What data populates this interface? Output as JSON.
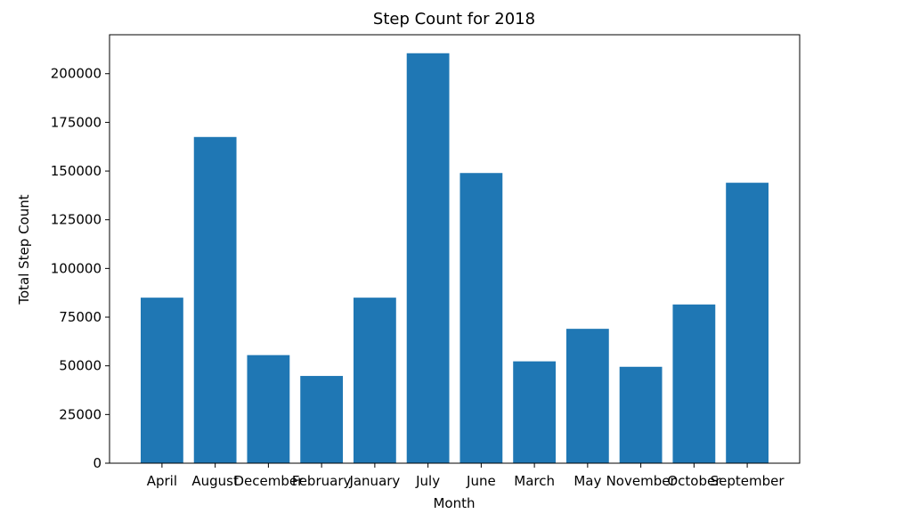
{
  "chart_data": {
    "type": "bar",
    "title": "Step Count for 2018",
    "xlabel": "Month",
    "ylabel": "Total Step Count",
    "categories": [
      "April",
      "August",
      "December",
      "February",
      "January",
      "July",
      "June",
      "March",
      "May",
      "November",
      "October",
      "September"
    ],
    "values": [
      85000,
      167500,
      55500,
      44800,
      85000,
      210500,
      149000,
      52300,
      69000,
      49500,
      81500,
      144000
    ],
    "ylim": [
      0,
      220000
    ],
    "yticks": [
      0,
      25000,
      50000,
      75000,
      100000,
      125000,
      150000,
      175000,
      200000
    ],
    "grid": false,
    "bar_color": "#1f77b4"
  }
}
